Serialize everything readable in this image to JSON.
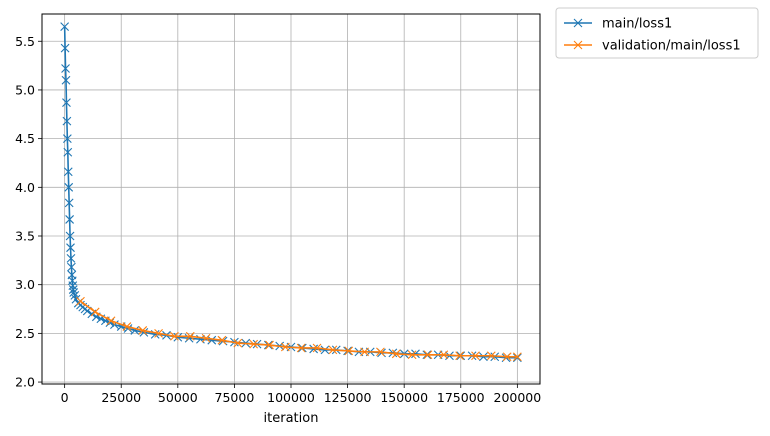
{
  "chart_data": {
    "type": "line",
    "title": "",
    "xlabel": "iteration",
    "ylabel": "",
    "xlim": [
      -10000,
      210000
    ],
    "ylim": [
      1.98,
      5.78
    ],
    "xticks": [
      0,
      25000,
      50000,
      75000,
      100000,
      125000,
      150000,
      175000,
      200000
    ],
    "xtick_labels": [
      "0",
      "25000",
      "50000",
      "75000",
      "100000",
      "125000",
      "150000",
      "175000",
      "200000"
    ],
    "yticks": [
      2.0,
      2.5,
      3.0,
      3.5,
      4.0,
      4.5,
      5.0,
      5.5
    ],
    "ytick_labels": [
      "2.0",
      "2.5",
      "3.0",
      "3.5",
      "4.0",
      "4.5",
      "5.0",
      "5.5"
    ],
    "grid": true,
    "legend_position": "outside-top-right",
    "series": [
      {
        "name": "main/loss1",
        "color": "#1f77b4",
        "marker": "x",
        "x": [
          0,
          200,
          400,
          600,
          800,
          1000,
          1200,
          1400,
          1600,
          1800,
          2000,
          2200,
          2400,
          2600,
          2800,
          3000,
          3200,
          3400,
          3600,
          3800,
          4000,
          4500,
          5000,
          6000,
          7000,
          8000,
          9000,
          10000,
          12000,
          14000,
          16000,
          18000,
          20000,
          22000,
          25000,
          28000,
          31000,
          35000,
          40000,
          45000,
          50000,
          55000,
          60000,
          65000,
          70000,
          75000,
          80000,
          85000,
          90000,
          95000,
          100000,
          105000,
          110000,
          115000,
          120000,
          125000,
          130000,
          135000,
          140000,
          145000,
          150000,
          155000,
          160000,
          165000,
          170000,
          175000,
          180000,
          185000,
          190000,
          195000,
          200000
        ],
        "y": [
          5.65,
          5.43,
          5.22,
          5.1,
          4.87,
          4.68,
          4.5,
          4.36,
          4.16,
          4.0,
          3.84,
          3.67,
          3.5,
          3.38,
          3.27,
          3.18,
          3.1,
          3.04,
          2.99,
          2.95,
          2.92,
          2.89,
          2.85,
          2.81,
          2.79,
          2.77,
          2.75,
          2.73,
          2.7,
          2.67,
          2.65,
          2.63,
          2.61,
          2.59,
          2.57,
          2.55,
          2.53,
          2.51,
          2.49,
          2.48,
          2.46,
          2.45,
          2.44,
          2.43,
          2.42,
          2.41,
          2.4,
          2.39,
          2.38,
          2.37,
          2.36,
          2.35,
          2.34,
          2.33,
          2.33,
          2.32,
          2.31,
          2.31,
          2.3,
          2.3,
          2.29,
          2.29,
          2.28,
          2.28,
          2.27,
          2.27,
          2.27,
          2.26,
          2.26,
          2.25,
          2.25
        ]
      },
      {
        "name": "validation/main/loss1",
        "color": "#ff7f0e",
        "marker": "x",
        "x": [
          7000,
          13500,
          20500,
          27500,
          34500,
          41500,
          48500,
          55500,
          62500,
          69500,
          76500,
          83500,
          90500,
          97500,
          104500,
          111500,
          118500,
          125500,
          132500,
          139500,
          146500,
          153500,
          160500,
          167500,
          174500,
          181500,
          188500,
          195500,
          200000
        ],
        "y": [
          2.83,
          2.72,
          2.63,
          2.57,
          2.53,
          2.5,
          2.47,
          2.47,
          2.45,
          2.43,
          2.4,
          2.39,
          2.38,
          2.36,
          2.35,
          2.35,
          2.33,
          2.32,
          2.31,
          2.31,
          2.29,
          2.28,
          2.28,
          2.28,
          2.27,
          2.27,
          2.27,
          2.26,
          2.26
        ]
      }
    ]
  }
}
